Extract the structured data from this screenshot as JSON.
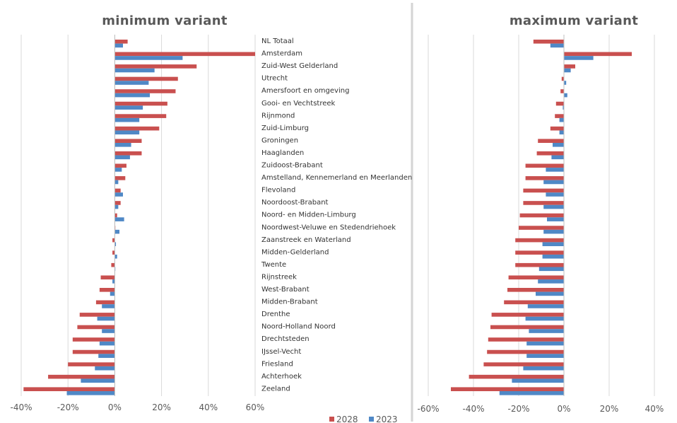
{
  "colors": {
    "s2028": "#C9504F",
    "s2023": "#4F88C6",
    "grid": "#D9D9D9",
    "separator": "#D4D4D4"
  },
  "legend": [
    {
      "name": "2028",
      "color": "#C9504F"
    },
    {
      "name": "2023",
      "color": "#4F88C6"
    }
  ],
  "chart_data": [
    {
      "type": "bar",
      "orientation": "horizontal",
      "title": "minimum variant",
      "xlim": [
        -40,
        60
      ],
      "xticks": [
        "-40%",
        "-20%",
        "0%",
        "20%",
        "40%",
        "60%"
      ],
      "grid": true,
      "categories": [
        "NL Totaal",
        "Amsterdam",
        "Zuid-West Gelderland",
        "Utrecht",
        "Amersfoort en omgeving",
        "Gooi- en Vechtstreek",
        "Rijnmond",
        "Zuid-Limburg",
        "Groningen",
        "Haaglanden",
        "Zuidoost-Brabant",
        "Amstelland, Kennemerland en Meerlanden",
        "Flevoland",
        "Noordoost-Brabant",
        "Noord- en Midden-Limburg",
        "Noordwest-Veluwe en Stedendriehoek",
        "Zaanstreek en Waterland",
        "Midden-Gelderland",
        "Twente",
        "Rijnstreek",
        "West-Brabant",
        "Midden-Brabant",
        "Drenthe",
        "Noord-Holland Noord",
        "Drechtsteden",
        "IJssel-Vecht",
        "Friesland",
        "Achterhoek",
        "Zeeland"
      ],
      "series": [
        {
          "name": "2028",
          "values": [
            5.5,
            60,
            35,
            27,
            26,
            22.5,
            22,
            19,
            11.5,
            11.5,
            5,
            4.5,
            2.5,
            2.5,
            1,
            0,
            -1,
            -1,
            -1.5,
            -6,
            -6.5,
            -8,
            -15,
            -16,
            -18,
            -18,
            -20,
            -28.5,
            -39
          ]
        },
        {
          "name": "2023",
          "values": [
            3.5,
            29,
            17,
            14.5,
            15,
            12,
            10.5,
            10.5,
            7,
            6.5,
            3,
            1.5,
            3.5,
            1.5,
            4,
            2,
            0.5,
            1,
            0,
            -1,
            -2,
            -5.5,
            -7.5,
            -5.5,
            -6.5,
            -7,
            -8.5,
            -14.5,
            -20.5
          ]
        }
      ]
    },
    {
      "type": "bar",
      "orientation": "horizontal",
      "title": "maximum variant",
      "xlim": [
        -60,
        40
      ],
      "xticks": [
        "-60%",
        "-40%",
        "-20%",
        "0%",
        "20%",
        "40%"
      ],
      "grid": true,
      "categories": [
        "NL Totaal",
        "Amsterdam",
        "Zuid-West Gelderland",
        "Utrecht",
        "Amersfoort en omgeving",
        "Gooi- en Vechtstreek",
        "Rijnmond",
        "Zuid-Limburg",
        "Groningen",
        "Haaglanden",
        "Zuidoost-Brabant",
        "Amstelland, Kennemerland en Meerlanden",
        "Flevoland",
        "Noordoost-Brabant",
        "Noord- en Midden-Limburg",
        "Noordwest-Veluwe en Stedendriehoek",
        "Zaanstreek en Waterland",
        "Midden-Gelderland",
        "Twente",
        "Rijnstreek",
        "West-Brabant",
        "Midden-Brabant",
        "Drenthe",
        "Noord-Holland Noord",
        "Drechtsteden",
        "IJssel-Vecht",
        "Friesland",
        "Achterhoek",
        "Zeeland"
      ],
      "series": [
        {
          "name": "2028",
          "values": [
            -13.5,
            30,
            5,
            -1,
            -1.5,
            -3.5,
            -4,
            -6,
            -11.5,
            -12,
            -17,
            -17,
            -18,
            -18,
            -19.5,
            -20,
            -21.5,
            -21.5,
            -21.5,
            -24.5,
            -25,
            -26.5,
            -32,
            -32.5,
            -33.5,
            -34,
            -35.5,
            -42,
            -50
          ]
        },
        {
          "name": "2023",
          "values": [
            -6,
            13,
            3,
            1,
            1.5,
            -0.5,
            -2,
            -2,
            -5,
            -5.5,
            -8,
            -9,
            -8,
            -9,
            -7.5,
            -9,
            -9.5,
            -9.5,
            -11,
            -11.5,
            -12.5,
            -16,
            -17,
            -15.5,
            -16.5,
            -16.5,
            -18,
            -23,
            -28.5
          ]
        }
      ]
    }
  ]
}
